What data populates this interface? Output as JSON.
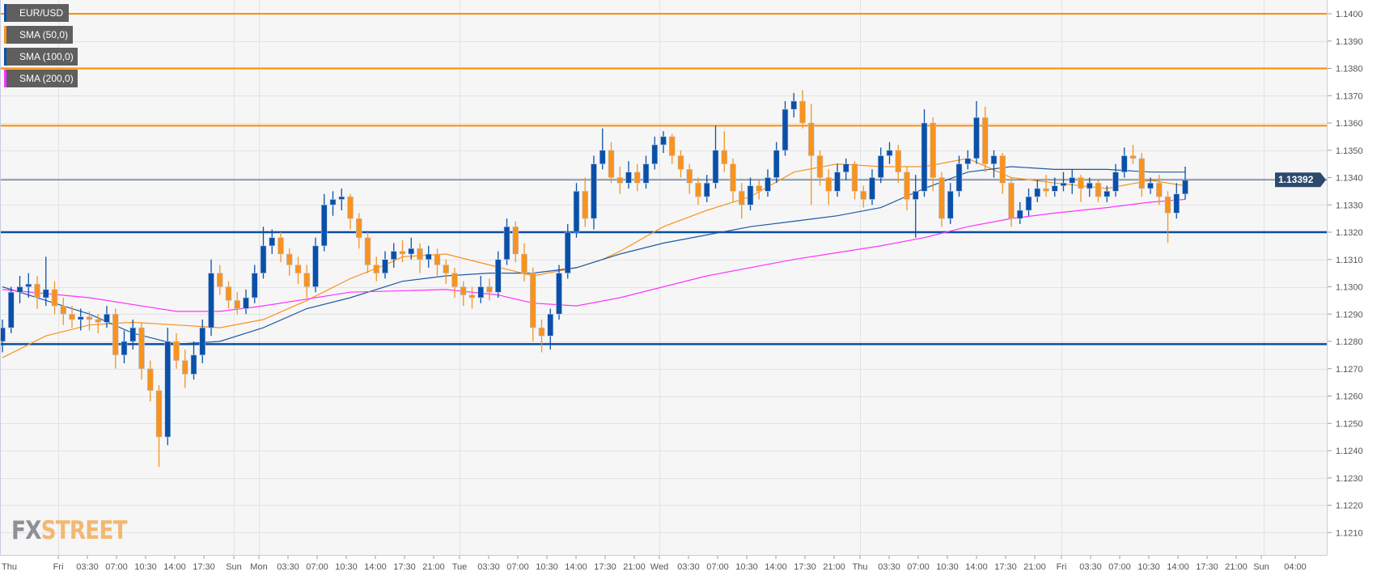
{
  "legend": [
    {
      "label": "EUR/USD",
      "color": "#0a50a8"
    },
    {
      "label": "SMA (50,0)",
      "color": "#f7931e"
    },
    {
      "label": "SMA (100,0)",
      "color": "#0a50a8"
    },
    {
      "label": "SMA (200,0)",
      "color": "#ff33ff"
    }
  ],
  "logo": {
    "part1": "FX",
    "part2": "STREET"
  },
  "chart_data": {
    "type": "candlestick",
    "symbol": "EUR/USD",
    "current_price": "1.13392",
    "colors": {
      "bull": "#0a50a8",
      "bear": "#f7931e",
      "sma50": "#f7931e",
      "sma100": "#1f5aa6",
      "sma200": "#ff33ff",
      "resistance": "#ff8c00",
      "support": "#0a4ea0",
      "price_line": "#2c4a6e"
    },
    "ylim": [
      1.1203,
      1.1405
    ],
    "y_ticks": [
      "1.1400",
      "1.1390",
      "1.1380",
      "1.1370",
      "1.1360",
      "1.1350",
      "1.1340",
      "1.1330",
      "1.1320",
      "1.1310",
      "1.1300",
      "1.1290",
      "1.1280",
      "1.1270",
      "1.1260",
      "1.1250",
      "1.1240",
      "1.1230",
      "1.1220",
      "1.1210"
    ],
    "x_ticks": [
      "Thu",
      "Fri",
      "03:30",
      "07:00",
      "10:30",
      "14:00",
      "17:30",
      "Sun",
      "Mon",
      "03:30",
      "07:00",
      "10:30",
      "14:00",
      "17:30",
      "21:00",
      "Tue",
      "03:30",
      "07:00",
      "10:30",
      "14:00",
      "17:30",
      "21:00",
      "Wed",
      "03:30",
      "07:00",
      "10:30",
      "14:00",
      "17:30",
      "21:00",
      "Thu",
      "03:30",
      "07:00",
      "10:30",
      "14:00",
      "17:30",
      "21:00",
      "Fri",
      "03:30",
      "07:00",
      "10:30",
      "14:00",
      "17:30",
      "21:00",
      "Sun",
      "04:00"
    ],
    "grid": true,
    "horizontal_levels": [
      {
        "value": 1.14,
        "kind": "resistance"
      },
      {
        "value": 1.138,
        "kind": "resistance"
      },
      {
        "value": 1.1359,
        "kind": "resistance"
      },
      {
        "value": 1.132,
        "kind": "support"
      },
      {
        "value": 1.1279,
        "kind": "support"
      },
      {
        "value": 1.13392,
        "kind": "price_line"
      }
    ],
    "candles_ohlc": [
      [
        1.128,
        1.1288,
        1.1276,
        1.1285
      ],
      [
        1.1285,
        1.13,
        1.1283,
        1.1298
      ],
      [
        1.1298,
        1.1304,
        1.1294,
        1.13
      ],
      [
        1.13,
        1.1305,
        1.1296,
        1.1301
      ],
      [
        1.1301,
        1.1304,
        1.1292,
        1.1296
      ],
      [
        1.1296,
        1.1311,
        1.1293,
        1.1299
      ],
      [
        1.1299,
        1.1302,
        1.129,
        1.1293
      ],
      [
        1.1293,
        1.1296,
        1.1286,
        1.129
      ],
      [
        1.129,
        1.1293,
        1.1285,
        1.1288
      ],
      [
        1.1288,
        1.1292,
        1.1284,
        1.1289
      ],
      [
        1.1289,
        1.1291,
        1.1284,
        1.1288
      ],
      [
        1.1288,
        1.129,
        1.1283,
        1.1287
      ],
      [
        1.1287,
        1.1293,
        1.1285,
        1.129
      ],
      [
        1.129,
        1.1292,
        1.127,
        1.1275
      ],
      [
        1.1275,
        1.1284,
        1.1272,
        1.128
      ],
      [
        1.128,
        1.1288,
        1.1277,
        1.1285
      ],
      [
        1.1285,
        1.1287,
        1.1266,
        1.127
      ],
      [
        1.127,
        1.1273,
        1.1258,
        1.1262
      ],
      [
        1.1262,
        1.1264,
        1.1234,
        1.1245
      ],
      [
        1.1245,
        1.1285,
        1.1242,
        1.128
      ],
      [
        1.128,
        1.1283,
        1.127,
        1.1273
      ],
      [
        1.1273,
        1.1277,
        1.1263,
        1.1268
      ],
      [
        1.1268,
        1.128,
        1.1266,
        1.1275
      ],
      [
        1.1275,
        1.1288,
        1.1272,
        1.1285
      ],
      [
        1.1285,
        1.131,
        1.1282,
        1.1305
      ],
      [
        1.1305,
        1.1308,
        1.1297,
        1.13
      ],
      [
        1.13,
        1.1302,
        1.1292,
        1.1295
      ],
      [
        1.1295,
        1.1298,
        1.129,
        1.1292
      ],
      [
        1.1292,
        1.1299,
        1.129,
        1.1296
      ],
      [
        1.1296,
        1.1308,
        1.1294,
        1.1305
      ],
      [
        1.1305,
        1.1322,
        1.1303,
        1.1315
      ],
      [
        1.1315,
        1.1321,
        1.1312,
        1.1318
      ],
      [
        1.1318,
        1.132,
        1.1309,
        1.1312
      ],
      [
        1.1312,
        1.1314,
        1.1304,
        1.1308
      ],
      [
        1.1308,
        1.1311,
        1.1301,
        1.1305
      ],
      [
        1.1305,
        1.1308,
        1.1296,
        1.13
      ],
      [
        1.13,
        1.1318,
        1.1298,
        1.1315
      ],
      [
        1.1315,
        1.1334,
        1.1313,
        1.133
      ],
      [
        1.133,
        1.1335,
        1.1326,
        1.1332
      ],
      [
        1.1332,
        1.1336,
        1.1328,
        1.1333
      ],
      [
        1.1333,
        1.1334,
        1.1321,
        1.1325
      ],
      [
        1.1325,
        1.1327,
        1.1314,
        1.1318
      ],
      [
        1.1318,
        1.132,
        1.1305,
        1.1308
      ],
      [
        1.1308,
        1.1311,
        1.1302,
        1.1305
      ],
      [
        1.1305,
        1.1313,
        1.1303,
        1.131
      ],
      [
        1.131,
        1.1316,
        1.1307,
        1.1313
      ],
      [
        1.1313,
        1.1317,
        1.1309,
        1.1312
      ],
      [
        1.1312,
        1.1318,
        1.131,
        1.1314
      ],
      [
        1.1314,
        1.1316,
        1.1305,
        1.131
      ],
      [
        1.131,
        1.1315,
        1.1307,
        1.1312
      ],
      [
        1.1312,
        1.1314,
        1.1304,
        1.1308
      ],
      [
        1.1308,
        1.131,
        1.1301,
        1.1305
      ],
      [
        1.1305,
        1.1307,
        1.1296,
        1.13
      ],
      [
        1.13,
        1.1302,
        1.1293,
        1.1297
      ],
      [
        1.1297,
        1.13,
        1.1292,
        1.1296
      ],
      [
        1.1296,
        1.1304,
        1.1294,
        1.13
      ],
      [
        1.13,
        1.1303,
        1.1295,
        1.1298
      ],
      [
        1.1298,
        1.1313,
        1.1296,
        1.131
      ],
      [
        1.131,
        1.1325,
        1.1308,
        1.1322
      ],
      [
        1.1322,
        1.1324,
        1.1309,
        1.1312
      ],
      [
        1.1312,
        1.1316,
        1.1302,
        1.1305
      ],
      [
        1.1305,
        1.1307,
        1.128,
        1.1285
      ],
      [
        1.1285,
        1.1288,
        1.1276,
        1.1282
      ],
      [
        1.1282,
        1.1292,
        1.1277,
        1.129
      ],
      [
        1.129,
        1.1308,
        1.1288,
        1.1305
      ],
      [
        1.1305,
        1.1323,
        1.1303,
        1.132
      ],
      [
        1.132,
        1.1338,
        1.1318,
        1.1335
      ],
      [
        1.1335,
        1.134,
        1.1322,
        1.1325
      ],
      [
        1.1325,
        1.1348,
        1.1321,
        1.1345
      ],
      [
        1.1345,
        1.1358,
        1.1343,
        1.135
      ],
      [
        1.135,
        1.1353,
        1.1338,
        1.134
      ],
      [
        1.134,
        1.1344,
        1.1334,
        1.1338
      ],
      [
        1.1338,
        1.1346,
        1.1336,
        1.1342
      ],
      [
        1.1342,
        1.1345,
        1.1335,
        1.1338
      ],
      [
        1.1338,
        1.1348,
        1.1336,
        1.1345
      ],
      [
        1.1345,
        1.1355,
        1.1343,
        1.1352
      ],
      [
        1.1352,
        1.1357,
        1.1349,
        1.1355
      ],
      [
        1.1355,
        1.1356,
        1.1345,
        1.1348
      ],
      [
        1.1348,
        1.135,
        1.134,
        1.1343
      ],
      [
        1.1343,
        1.1345,
        1.1334,
        1.1338
      ],
      [
        1.1338,
        1.134,
        1.133,
        1.1333
      ],
      [
        1.1333,
        1.1341,
        1.1331,
        1.1338
      ],
      [
        1.1338,
        1.1359,
        1.1336,
        1.135
      ],
      [
        1.135,
        1.1357,
        1.1342,
        1.1345
      ],
      [
        1.1345,
        1.1347,
        1.1331,
        1.1335
      ],
      [
        1.1335,
        1.1338,
        1.1325,
        1.133
      ],
      [
        1.133,
        1.134,
        1.1328,
        1.1337
      ],
      [
        1.1337,
        1.1339,
        1.1332,
        1.1335
      ],
      [
        1.1335,
        1.1343,
        1.1333,
        1.134
      ],
      [
        1.134,
        1.1353,
        1.1338,
        1.135
      ],
      [
        1.135,
        1.1368,
        1.1348,
        1.1365
      ],
      [
        1.1365,
        1.1371,
        1.1362,
        1.1368
      ],
      [
        1.1368,
        1.1372,
        1.1358,
        1.136
      ],
      [
        1.136,
        1.1367,
        1.133,
        1.1348
      ],
      [
        1.1348,
        1.135,
        1.1337,
        1.134
      ],
      [
        1.134,
        1.1343,
        1.133,
        1.1335
      ],
      [
        1.1335,
        1.1345,
        1.1333,
        1.1342
      ],
      [
        1.1342,
        1.1347,
        1.1339,
        1.1345
      ],
      [
        1.1345,
        1.1346,
        1.1332,
        1.1335
      ],
      [
        1.1335,
        1.1337,
        1.1329,
        1.1332
      ],
      [
        1.1332,
        1.1343,
        1.133,
        1.134
      ],
      [
        1.134,
        1.1351,
        1.1338,
        1.1348
      ],
      [
        1.1348,
        1.1353,
        1.1345,
        1.135
      ],
      [
        1.135,
        1.1352,
        1.1338,
        1.1342
      ],
      [
        1.1342,
        1.1344,
        1.1328,
        1.1332
      ],
      [
        1.1332,
        1.1341,
        1.1318,
        1.1335
      ],
      [
        1.1335,
        1.1365,
        1.1333,
        1.136
      ],
      [
        1.136,
        1.1362,
        1.1335,
        1.134
      ],
      [
        1.134,
        1.1342,
        1.1322,
        1.1325
      ],
      [
        1.1325,
        1.1338,
        1.1323,
        1.1335
      ],
      [
        1.1335,
        1.1348,
        1.1333,
        1.1345
      ],
      [
        1.1345,
        1.135,
        1.1343,
        1.1347
      ],
      [
        1.1347,
        1.1368,
        1.1345,
        1.1362
      ],
      [
        1.1362,
        1.1366,
        1.1342,
        1.1345
      ],
      [
        1.1345,
        1.135,
        1.134,
        1.1348
      ],
      [
        1.1348,
        1.1349,
        1.1334,
        1.1338
      ],
      [
        1.1338,
        1.134,
        1.1322,
        1.1325
      ],
      [
        1.1325,
        1.1331,
        1.1323,
        1.1328
      ],
      [
        1.1328,
        1.1336,
        1.1326,
        1.1333
      ],
      [
        1.1333,
        1.1339,
        1.1331,
        1.1336
      ],
      [
        1.1336,
        1.1341,
        1.1333,
        1.1335
      ],
      [
        1.1335,
        1.134,
        1.1333,
        1.1337
      ],
      [
        1.1337,
        1.1342,
        1.1335,
        1.1338
      ],
      [
        1.1338,
        1.1343,
        1.1334,
        1.134
      ],
      [
        1.134,
        1.1341,
        1.1331,
        1.1336
      ],
      [
        1.1336,
        1.134,
        1.1333,
        1.1338
      ],
      [
        1.1338,
        1.1339,
        1.1331,
        1.1333
      ],
      [
        1.1333,
        1.1337,
        1.1331,
        1.1335
      ],
      [
        1.1335,
        1.1345,
        1.1333,
        1.1342
      ],
      [
        1.1342,
        1.1351,
        1.134,
        1.1348
      ],
      [
        1.1348,
        1.1352,
        1.1345,
        1.1347
      ],
      [
        1.1347,
        1.1349,
        1.1333,
        1.1336
      ],
      [
        1.1336,
        1.134,
        1.1334,
        1.1338
      ],
      [
        1.1338,
        1.1341,
        1.133,
        1.1333
      ],
      [
        1.1333,
        1.1335,
        1.1316,
        1.1327
      ],
      [
        1.1327,
        1.1338,
        1.1325,
        1.1334
      ],
      [
        1.1334,
        1.1344,
        1.1332,
        1.1339
      ]
    ],
    "sma_series": [
      {
        "name": "SMA (50,0)",
        "color_key": "sma50",
        "points": [
          [
            0,
            1.1274
          ],
          [
            5,
            1.1282
          ],
          [
            10,
            1.1286
          ],
          [
            15,
            1.1287
          ],
          [
            20,
            1.1286
          ],
          [
            25,
            1.1285
          ],
          [
            30,
            1.1288
          ],
          [
            35,
            1.1295
          ],
          [
            40,
            1.1303
          ],
          [
            44,
            1.1308
          ],
          [
            46,
            1.1311
          ],
          [
            51,
            1.1312
          ],
          [
            56,
            1.1308
          ],
          [
            61,
            1.1304
          ],
          [
            66,
            1.1307
          ],
          [
            69,
            1.131
          ],
          [
            71,
            1.1313
          ],
          [
            76,
            1.1322
          ],
          [
            81,
            1.1328
          ],
          [
            86,
            1.1333
          ],
          [
            91,
            1.1342
          ],
          [
            96,
            1.1345
          ],
          [
            101,
            1.1344
          ],
          [
            106,
            1.1344
          ],
          [
            111,
            1.1347
          ],
          [
            116,
            1.134
          ],
          [
            121,
            1.1338
          ],
          [
            127,
            1.1336
          ],
          [
            132,
            1.1339
          ],
          [
            136,
            1.1337
          ]
        ]
      },
      {
        "name": "SMA (100,0)",
        "color_key": "sma100",
        "points": [
          [
            0,
            1.13
          ],
          [
            5,
            1.1295
          ],
          [
            10,
            1.129
          ],
          [
            15,
            1.1283
          ],
          [
            20,
            1.1279
          ],
          [
            25,
            1.128
          ],
          [
            30,
            1.1285
          ],
          [
            35,
            1.1292
          ],
          [
            40,
            1.1296
          ],
          [
            46,
            1.1302
          ],
          [
            51,
            1.1304
          ],
          [
            56,
            1.1305
          ],
          [
            61,
            1.1305
          ],
          [
            66,
            1.1307
          ],
          [
            71,
            1.1312
          ],
          [
            76,
            1.1316
          ],
          [
            81,
            1.1319
          ],
          [
            86,
            1.1322
          ],
          [
            91,
            1.1324
          ],
          [
            96,
            1.1326
          ],
          [
            101,
            1.1329
          ],
          [
            106,
            1.1336
          ],
          [
            111,
            1.1342
          ],
          [
            116,
            1.1344
          ],
          [
            121,
            1.1343
          ],
          [
            127,
            1.1343
          ],
          [
            132,
            1.1342
          ],
          [
            136,
            1.1342
          ]
        ]
      },
      {
        "name": "SMA (200,0)",
        "color_key": "sma200",
        "points": [
          [
            0,
            1.1299
          ],
          [
            10,
            1.1296
          ],
          [
            20,
            1.1291
          ],
          [
            25,
            1.1291
          ],
          [
            30,
            1.1293
          ],
          [
            40,
            1.1298
          ],
          [
            51,
            1.1299
          ],
          [
            57,
            1.1297
          ],
          [
            61,
            1.1294
          ],
          [
            66,
            1.1293
          ],
          [
            71,
            1.1296
          ],
          [
            81,
            1.1304
          ],
          [
            91,
            1.131
          ],
          [
            101,
            1.1315
          ],
          [
            106,
            1.1318
          ],
          [
            111,
            1.1322
          ],
          [
            116,
            1.1325
          ],
          [
            121,
            1.1327
          ],
          [
            127,
            1.1329
          ],
          [
            132,
            1.1331
          ],
          [
            136,
            1.1332
          ]
        ]
      }
    ]
  }
}
